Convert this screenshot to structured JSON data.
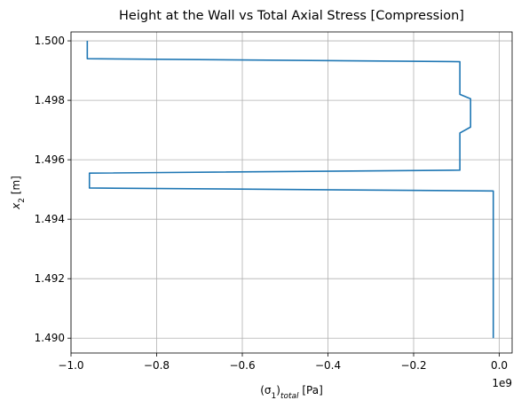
{
  "chart_data": {
    "type": "line",
    "title": "Height at the Wall vs Total Axial Stress [Compression]",
    "xlabel": {
      "prefix": "(σ",
      "sub1": "1",
      "mid": ")",
      "sub2": "total",
      "suffix": " [Pa]"
    },
    "ylabel": {
      "prefix": "x",
      "sub": "2",
      "suffix": " [m]"
    },
    "x_offset_label": "1e9",
    "x_scale": 1000000000,
    "xlim": [
      -1.0,
      0.03
    ],
    "ylim": [
      1.4895,
      1.5003
    ],
    "xticks": [
      -1.0,
      -0.8,
      -0.6,
      -0.4,
      -0.2,
      0.0
    ],
    "xtick_labels": [
      "−1.0",
      "−0.8",
      "−0.6",
      "−0.4",
      "−0.2",
      "0.0"
    ],
    "yticks": [
      1.49,
      1.492,
      1.494,
      1.496,
      1.498,
      1.5
    ],
    "ytick_labels": [
      "1.490",
      "1.492",
      "1.494",
      "1.496",
      "1.498",
      "1.500"
    ],
    "grid": true,
    "series": [
      {
        "color": "#1f77b4",
        "x": [
          -0.014,
          -0.014,
          -0.957,
          -0.957,
          -0.092,
          -0.092,
          -0.067,
          -0.067,
          -0.092,
          -0.092,
          -0.962,
          -0.962
        ],
        "y": [
          1.49,
          1.49495,
          1.49505,
          1.49555,
          1.49565,
          1.4969,
          1.4971,
          1.49805,
          1.4982,
          1.4993,
          1.4994,
          1.5
        ]
      }
    ]
  }
}
